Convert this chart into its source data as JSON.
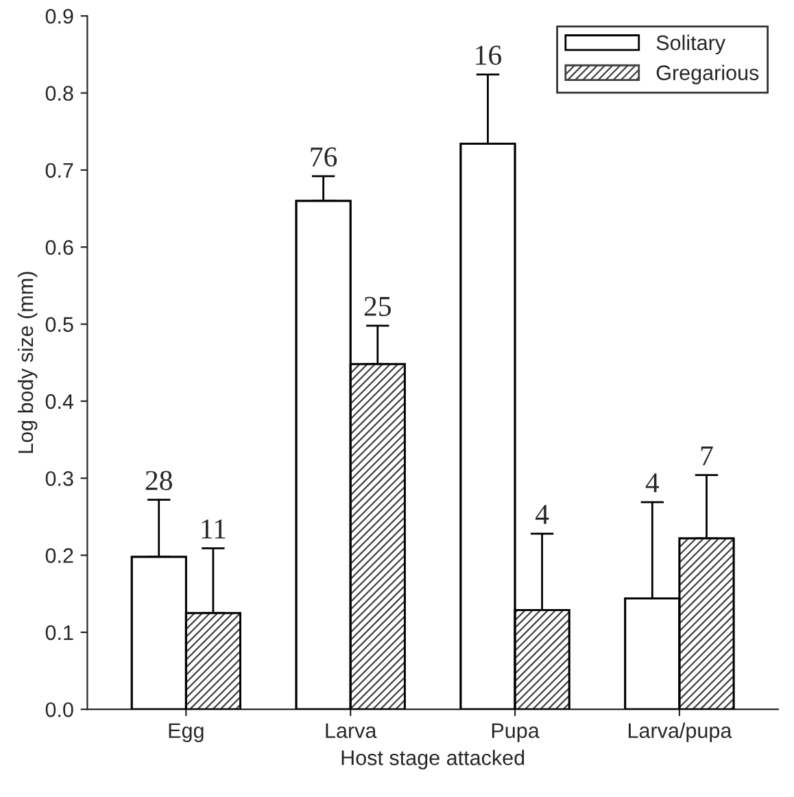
{
  "chart_data": {
    "type": "bar",
    "xlabel": "Host stage attacked",
    "ylabel": "Log body size (mm)",
    "categories": [
      "Egg",
      "Larva",
      "Pupa",
      "Larva/pupa"
    ],
    "series": [
      {
        "name": "Solitary",
        "color": "#ffffff",
        "values": [
          0.198,
          0.66,
          0.734,
          0.144
        ],
        "errors": [
          [
            0.198,
            0.272
          ],
          [
            0.66,
            0.692
          ],
          [
            0.734,
            0.824
          ],
          [
            0.144,
            0.269
          ]
        ]
      },
      {
        "name": "Gregarious",
        "color": "#404040",
        "values": [
          0.125,
          0.448,
          0.129,
          0.222
        ],
        "errors": [
          [
            0.125,
            0.209
          ],
          [
            0.448,
            0.498
          ],
          [
            0.129,
            0.228
          ],
          [
            0.222,
            0.304
          ]
        ]
      }
    ],
    "ylim": [
      0,
      0.9
    ],
    "yticks": [
      {
        "value": 0,
        "label": "0.0"
      },
      0.1,
      0.2,
      0.3,
      0.4,
      0.5,
      0.6,
      0.7,
      0.8,
      0.9
    ],
    "annotations": [
      "28",
      "11",
      "76",
      "25",
      "16",
      "4",
      "4",
      "7"
    ],
    "legend": "top right",
    "grid": false
  }
}
